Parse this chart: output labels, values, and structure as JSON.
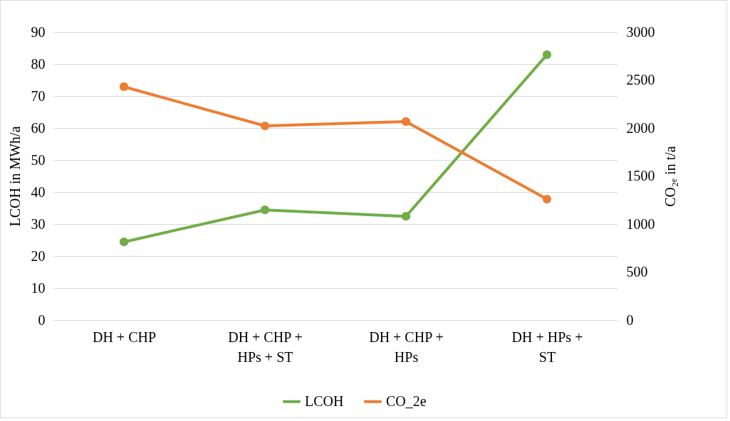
{
  "chart_data": {
    "type": "line",
    "categories": [
      "DH + CHP",
      "DH + CHP + HPs + ST",
      "DH + CHP + HPs",
      "DH + HPs + ST"
    ],
    "ylabel": "LCOH in MWh/a",
    "y2label": "CO₂ₑ in t/a",
    "ylim": [
      0,
      90
    ],
    "yticks": [
      0,
      10,
      20,
      30,
      40,
      50,
      60,
      70,
      80,
      90
    ],
    "y2lim": [
      0,
      3000
    ],
    "y2ticks": [
      0,
      500,
      1000,
      1500,
      2000,
      2500,
      3000
    ],
    "series": [
      {
        "name": "LCOH",
        "color": "#70ad47",
        "values": [
          24.4,
          34.4,
          32.4,
          82.9
        ]
      },
      {
        "name": "CO_2e",
        "color": "#ed7d31",
        "axis": "y2",
        "values": [
          2430,
          2022,
          2067,
          1259
        ]
      }
    ],
    "grid": "y",
    "legend": "bottom",
    "marker": "circle",
    "line_style": "solid"
  }
}
